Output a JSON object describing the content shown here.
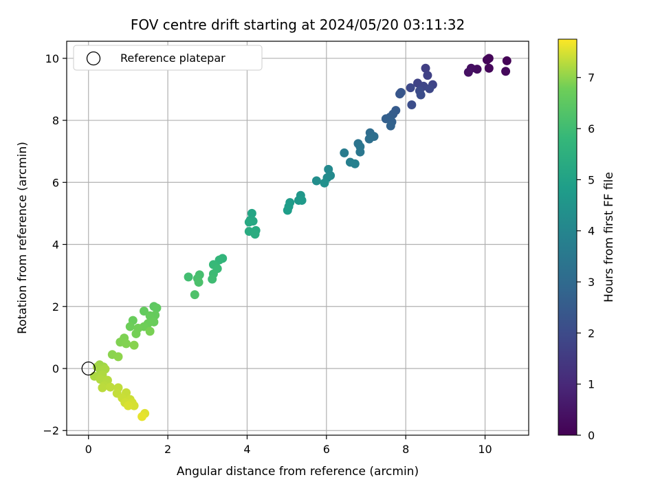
{
  "chart_data": {
    "type": "scatter",
    "title": "FOV centre drift starting at 2024/05/20 03:11:32",
    "xlabel": "Angular distance from reference (arcmin)",
    "ylabel": "Rotation from reference (arcmin)",
    "xlim": [
      -0.55,
      11.1
    ],
    "ylim": [
      -2.15,
      10.55
    ],
    "xticks": [
      0,
      2,
      4,
      6,
      8,
      10
    ],
    "yticks": [
      -2,
      0,
      2,
      4,
      6,
      8,
      10
    ],
    "grid": true,
    "legend": {
      "entries": [
        "Reference platepar"
      ],
      "placement": "top-left"
    },
    "reference_point": {
      "x": 0,
      "y": 0,
      "label": "Reference platepar"
    },
    "colorbar": {
      "label": "Hours from first FF file",
      "colormap": "viridis",
      "range": [
        0,
        7.75
      ],
      "ticks": [
        0,
        1,
        2,
        3,
        4,
        5,
        6,
        7
      ]
    },
    "points": [
      {
        "x": 10.55,
        "y": 9.92,
        "c": 0.05
      },
      {
        "x": 10.1,
        "y": 10.0,
        "c": 0.1
      },
      {
        "x": 10.05,
        "y": 9.95,
        "c": 0.12
      },
      {
        "x": 10.1,
        "y": 9.68,
        "c": 0.15
      },
      {
        "x": 10.52,
        "y": 9.58,
        "c": 0.2
      },
      {
        "x": 9.8,
        "y": 9.65,
        "c": 0.3
      },
      {
        "x": 9.65,
        "y": 9.68,
        "c": 0.35
      },
      {
        "x": 9.58,
        "y": 9.55,
        "c": 0.4
      },
      {
        "x": 8.5,
        "y": 9.68,
        "c": 1.65
      },
      {
        "x": 8.55,
        "y": 9.45,
        "c": 1.7
      },
      {
        "x": 8.3,
        "y": 9.2,
        "c": 1.75
      },
      {
        "x": 8.68,
        "y": 9.15,
        "c": 1.8
      },
      {
        "x": 8.45,
        "y": 9.1,
        "c": 1.85
      },
      {
        "x": 8.6,
        "y": 9.02,
        "c": 1.9
      },
      {
        "x": 8.12,
        "y": 9.05,
        "c": 1.95
      },
      {
        "x": 8.35,
        "y": 8.95,
        "c": 2.0
      },
      {
        "x": 8.38,
        "y": 8.82,
        "c": 2.05
      },
      {
        "x": 8.15,
        "y": 8.5,
        "c": 2.1
      },
      {
        "x": 7.88,
        "y": 8.9,
        "c": 2.3
      },
      {
        "x": 7.85,
        "y": 8.85,
        "c": 2.35
      },
      {
        "x": 7.75,
        "y": 8.32,
        "c": 2.5
      },
      {
        "x": 7.68,
        "y": 8.2,
        "c": 2.55
      },
      {
        "x": 7.6,
        "y": 8.1,
        "c": 2.6
      },
      {
        "x": 7.5,
        "y": 8.05,
        "c": 2.65
      },
      {
        "x": 7.65,
        "y": 7.95,
        "c": 2.7
      },
      {
        "x": 7.62,
        "y": 7.82,
        "c": 2.75
      },
      {
        "x": 7.1,
        "y": 7.6,
        "c": 3.1
      },
      {
        "x": 7.2,
        "y": 7.48,
        "c": 3.15
      },
      {
        "x": 7.08,
        "y": 7.4,
        "c": 3.2
      },
      {
        "x": 6.8,
        "y": 7.25,
        "c": 3.35
      },
      {
        "x": 6.85,
        "y": 7.15,
        "c": 3.4
      },
      {
        "x": 6.85,
        "y": 6.98,
        "c": 3.45
      },
      {
        "x": 6.45,
        "y": 6.95,
        "c": 3.65
      },
      {
        "x": 6.6,
        "y": 6.65,
        "c": 3.75
      },
      {
        "x": 6.72,
        "y": 6.6,
        "c": 3.8
      },
      {
        "x": 6.05,
        "y": 6.42,
        "c": 4.1
      },
      {
        "x": 6.1,
        "y": 6.22,
        "c": 4.15
      },
      {
        "x": 6.02,
        "y": 6.15,
        "c": 4.2
      },
      {
        "x": 5.75,
        "y": 6.05,
        "c": 4.3
      },
      {
        "x": 5.95,
        "y": 5.98,
        "c": 4.35
      },
      {
        "x": 5.35,
        "y": 5.58,
        "c": 4.6
      },
      {
        "x": 5.3,
        "y": 5.42,
        "c": 4.65
      },
      {
        "x": 5.38,
        "y": 5.42,
        "c": 4.7
      },
      {
        "x": 5.08,
        "y": 5.35,
        "c": 4.75
      },
      {
        "x": 5.05,
        "y": 5.22,
        "c": 4.8
      },
      {
        "x": 5.02,
        "y": 5.1,
        "c": 4.85
      },
      {
        "x": 4.12,
        "y": 5.0,
        "c": 5.1
      },
      {
        "x": 4.08,
        "y": 4.78,
        "c": 5.15
      },
      {
        "x": 4.15,
        "y": 4.75,
        "c": 5.2
      },
      {
        "x": 4.05,
        "y": 4.72,
        "c": 5.25
      },
      {
        "x": 4.22,
        "y": 4.45,
        "c": 5.3
      },
      {
        "x": 4.05,
        "y": 4.42,
        "c": 5.35
      },
      {
        "x": 4.2,
        "y": 4.33,
        "c": 5.4
      },
      {
        "x": 3.38,
        "y": 3.55,
        "c": 5.7
      },
      {
        "x": 3.3,
        "y": 3.5,
        "c": 5.75
      },
      {
        "x": 3.2,
        "y": 3.32,
        "c": 5.8
      },
      {
        "x": 3.15,
        "y": 3.35,
        "c": 5.85
      },
      {
        "x": 3.25,
        "y": 3.22,
        "c": 5.9
      },
      {
        "x": 3.15,
        "y": 3.05,
        "c": 5.95
      },
      {
        "x": 3.12,
        "y": 2.88,
        "c": 6.0
      },
      {
        "x": 2.52,
        "y": 2.95,
        "c": 6.05
      },
      {
        "x": 2.8,
        "y": 3.02,
        "c": 6.1
      },
      {
        "x": 2.75,
        "y": 2.9,
        "c": 6.15
      },
      {
        "x": 2.78,
        "y": 2.78,
        "c": 6.2
      },
      {
        "x": 2.68,
        "y": 2.38,
        "c": 6.25
      },
      {
        "x": 1.65,
        "y": 2.0,
        "c": 6.5
      },
      {
        "x": 1.72,
        "y": 1.95,
        "c": 6.55
      },
      {
        "x": 1.4,
        "y": 1.85,
        "c": 6.6
      },
      {
        "x": 1.68,
        "y": 1.72,
        "c": 6.62
      },
      {
        "x": 1.55,
        "y": 1.7,
        "c": 6.65
      },
      {
        "x": 1.12,
        "y": 1.55,
        "c": 6.68
      },
      {
        "x": 1.65,
        "y": 1.5,
        "c": 6.7
      },
      {
        "x": 1.5,
        "y": 1.45,
        "c": 6.72
      },
      {
        "x": 1.05,
        "y": 1.35,
        "c": 6.75
      },
      {
        "x": 1.4,
        "y": 1.35,
        "c": 6.78
      },
      {
        "x": 1.25,
        "y": 1.3,
        "c": 6.8
      },
      {
        "x": 1.2,
        "y": 1.12,
        "c": 6.82
      },
      {
        "x": 1.55,
        "y": 1.2,
        "c": 6.85
      },
      {
        "x": 0.9,
        "y": 0.98,
        "c": 6.88
      },
      {
        "x": 0.8,
        "y": 0.85,
        "c": 6.9
      },
      {
        "x": 0.95,
        "y": 0.8,
        "c": 6.92
      },
      {
        "x": 1.15,
        "y": 0.75,
        "c": 6.95
      },
      {
        "x": 0.6,
        "y": 0.45,
        "c": 6.98
      },
      {
        "x": 0.75,
        "y": 0.38,
        "c": 7.0
      },
      {
        "x": 0.28,
        "y": 0.12,
        "c": 7.1
      },
      {
        "x": 0.38,
        "y": 0.05,
        "c": 7.12
      },
      {
        "x": 0.22,
        "y": 0.05,
        "c": 7.14
      },
      {
        "x": 0.3,
        "y": -0.05,
        "c": 7.16
      },
      {
        "x": 0.42,
        "y": -0.02,
        "c": 7.18
      },
      {
        "x": 0.15,
        "y": -0.25,
        "c": 7.2
      },
      {
        "x": 0.35,
        "y": -0.2,
        "c": 7.22
      },
      {
        "x": 0.3,
        "y": -0.35,
        "c": 7.24
      },
      {
        "x": 0.48,
        "y": -0.38,
        "c": 7.26
      },
      {
        "x": 0.4,
        "y": -0.55,
        "c": 7.28
      },
      {
        "x": 0.35,
        "y": -0.62,
        "c": 7.3
      },
      {
        "x": 0.55,
        "y": -0.6,
        "c": 7.32
      },
      {
        "x": 0.75,
        "y": -0.62,
        "c": 7.34
      },
      {
        "x": 0.72,
        "y": -0.8,
        "c": 7.36
      },
      {
        "x": 0.95,
        "y": -0.78,
        "c": 7.38
      },
      {
        "x": 0.85,
        "y": -0.95,
        "c": 7.4
      },
      {
        "x": 1.05,
        "y": -1.0,
        "c": 7.42
      },
      {
        "x": 0.92,
        "y": -1.1,
        "c": 7.44
      },
      {
        "x": 1.1,
        "y": -1.1,
        "c": 7.46
      },
      {
        "x": 1.15,
        "y": -1.2,
        "c": 7.48
      },
      {
        "x": 1.0,
        "y": -1.2,
        "c": 7.5
      },
      {
        "x": 1.42,
        "y": -1.45,
        "c": 7.55
      },
      {
        "x": 1.35,
        "y": -1.55,
        "c": 7.6
      }
    ]
  }
}
